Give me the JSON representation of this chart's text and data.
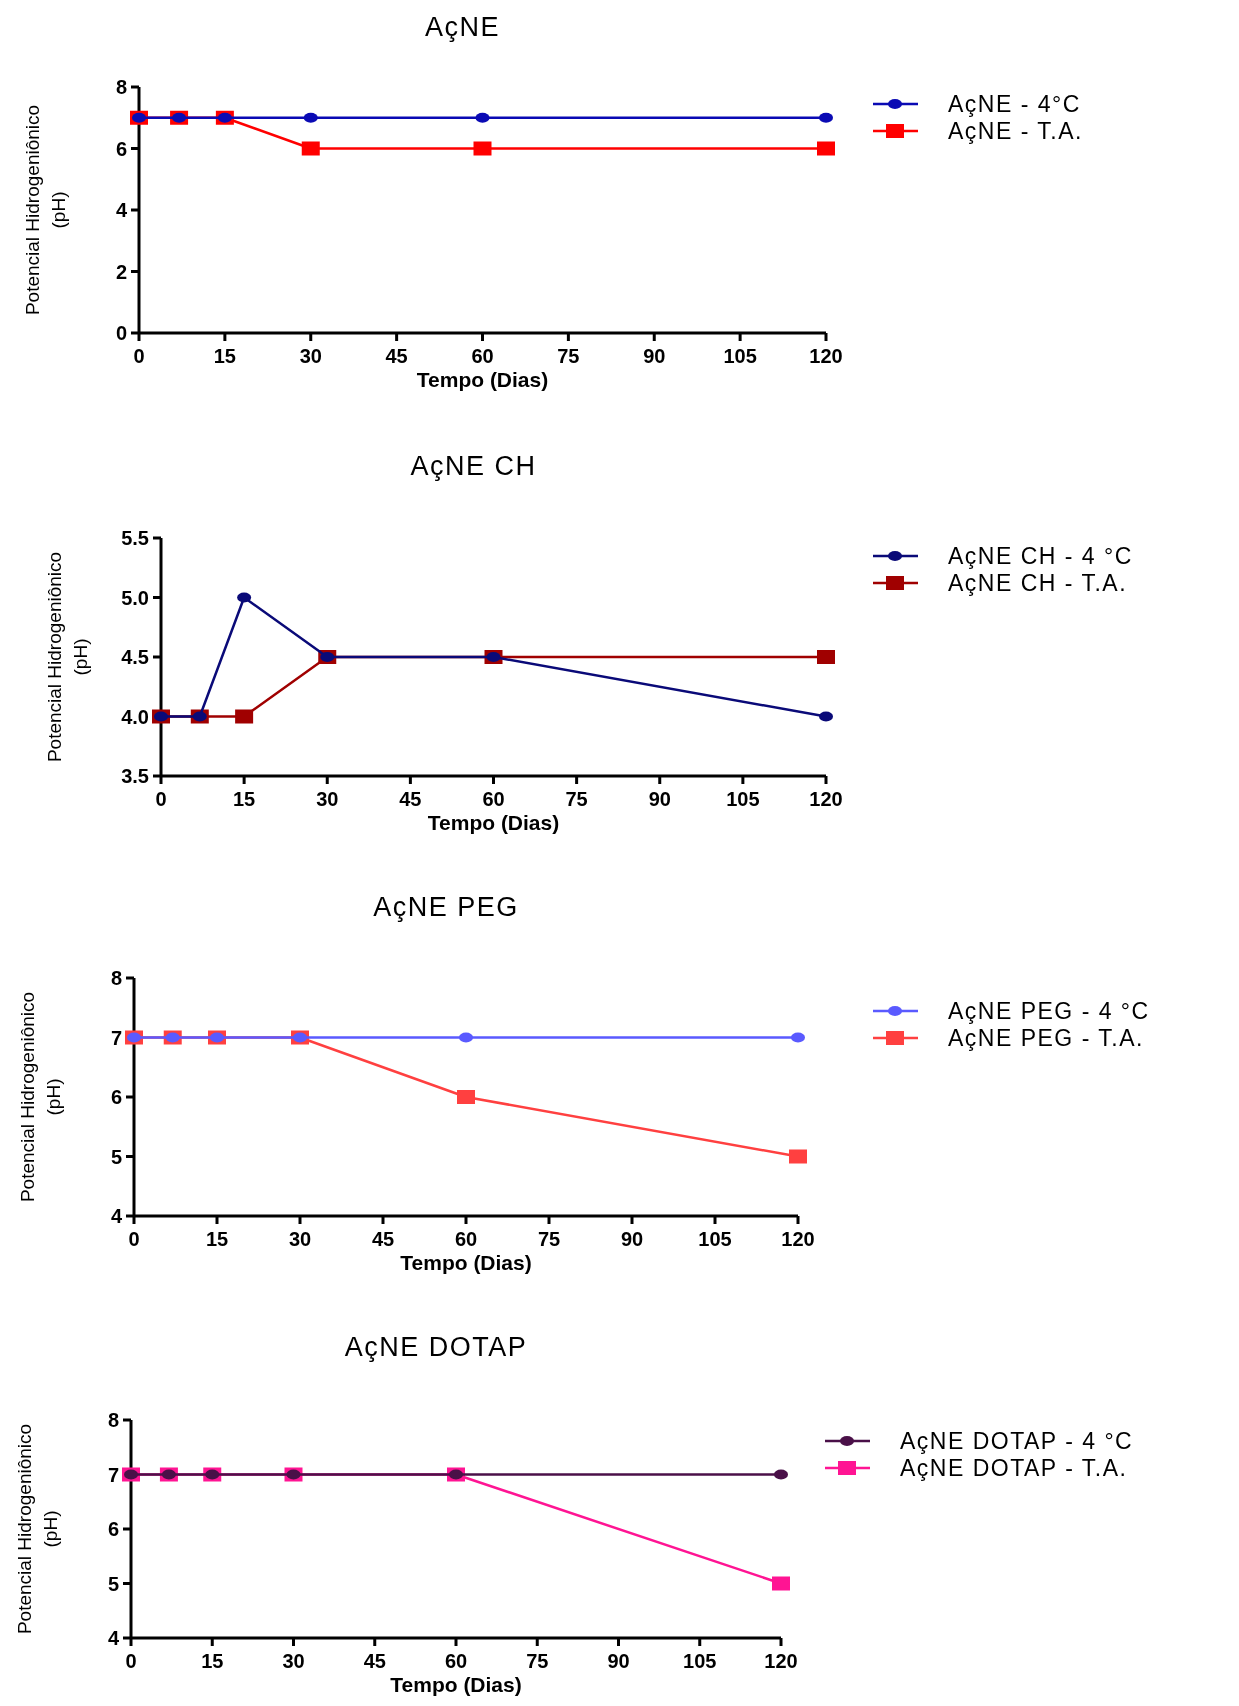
{
  "chart_data": [
    {
      "type": "line",
      "title": "AçNE",
      "xlabel": "Tempo (Dias)",
      "ylabel": "Potencial Hidrogeniônico\n(pH)",
      "x": [
        0,
        7,
        15,
        30,
        60,
        120
      ],
      "xlim": [
        0,
        120
      ],
      "xticks": [
        0,
        15,
        30,
        45,
        60,
        75,
        90,
        105,
        120
      ],
      "ylim": [
        0,
        8
      ],
      "yticks": [
        0,
        2,
        4,
        6,
        8
      ],
      "legend": "right",
      "grid": false,
      "series": [
        {
          "name": "AçNE - 4°C",
          "color": "#0a0ab4",
          "marker": "circle",
          "values": [
            7,
            7,
            7,
            7,
            7,
            7
          ]
        },
        {
          "name": "AçNE - T.A.",
          "color": "#ff0000",
          "marker": "square",
          "values": [
            7,
            7,
            7,
            6,
            6,
            6
          ]
        }
      ]
    },
    {
      "type": "line",
      "title": "AçNE CH",
      "xlabel": "Tempo (Dias)",
      "ylabel": "Potencial Hidrogeniônico\n(pH)",
      "x": [
        0,
        7,
        15,
        30,
        60,
        120
      ],
      "xlim": [
        0,
        120
      ],
      "xticks": [
        0,
        15,
        30,
        45,
        60,
        75,
        90,
        105,
        120
      ],
      "ylim": [
        3.5,
        5.5
      ],
      "yticks": [
        {
          "value": 3.5,
          "label": "3.5"
        },
        {
          "value": 4,
          "label": "4.0"
        },
        {
          "value": 4.5,
          "label": "4.5"
        },
        {
          "value": 5,
          "label": "5.0"
        },
        {
          "value": 5.5,
          "label": "5.5"
        }
      ],
      "legend": "right",
      "grid": false,
      "series": [
        {
          "name": "AçNE CH - 4 °C",
          "color": "#0a0a78",
          "marker": "circle",
          "values": [
            4,
            4,
            5,
            4.5,
            4.5,
            4
          ]
        },
        {
          "name": "AçNE CH - T.A.",
          "color": "#a00000",
          "marker": "square",
          "values": [
            4,
            4,
            4,
            4.5,
            4.5,
            4.5
          ]
        }
      ]
    },
    {
      "type": "line",
      "title": "AçNE PEG",
      "xlabel": "Tempo (Dias)",
      "ylabel": "Potencial Hidrogeniônico\n(pH)",
      "x": [
        0,
        7,
        15,
        30,
        60,
        120
      ],
      "xlim": [
        0,
        120
      ],
      "xticks": [
        0,
        15,
        30,
        45,
        60,
        75,
        90,
        105,
        120
      ],
      "ylim": [
        4,
        8
      ],
      "yticks": [
        4,
        5,
        6,
        7,
        8
      ],
      "legend": "right",
      "grid": false,
      "series": [
        {
          "name": "AçNE PEG - 4 °C",
          "color": "#5a5aff",
          "marker": "circle",
          "values": [
            7,
            7,
            7,
            7,
            7,
            7
          ]
        },
        {
          "name": "AçNE PEG - T.A.",
          "color": "#ff4040",
          "marker": "square",
          "values": [
            7,
            7,
            7,
            7,
            6,
            5
          ]
        }
      ]
    },
    {
      "type": "line",
      "title": "AçNE DOTAP",
      "xlabel": "Tempo (Dias)",
      "ylabel": "Potencial Hidrogeniônico\n(pH)",
      "x": [
        0,
        7,
        15,
        30,
        60,
        120
      ],
      "xlim": [
        0,
        120
      ],
      "xticks": [
        0,
        15,
        30,
        45,
        60,
        75,
        90,
        105,
        120
      ],
      "ylim": [
        4,
        8
      ],
      "yticks": [
        4,
        5,
        6,
        7,
        8
      ],
      "legend": "right",
      "grid": false,
      "series": [
        {
          "name": "AçNE DOTAP - 4 °C",
          "color": "#4a1048",
          "marker": "circle",
          "values": [
            7,
            7,
            7,
            7,
            7,
            7
          ]
        },
        {
          "name": "AçNE DOTAP - T.A.",
          "color": "#ff1493",
          "marker": "square",
          "values": [
            7,
            7,
            7,
            7,
            7,
            5
          ]
        }
      ]
    }
  ]
}
